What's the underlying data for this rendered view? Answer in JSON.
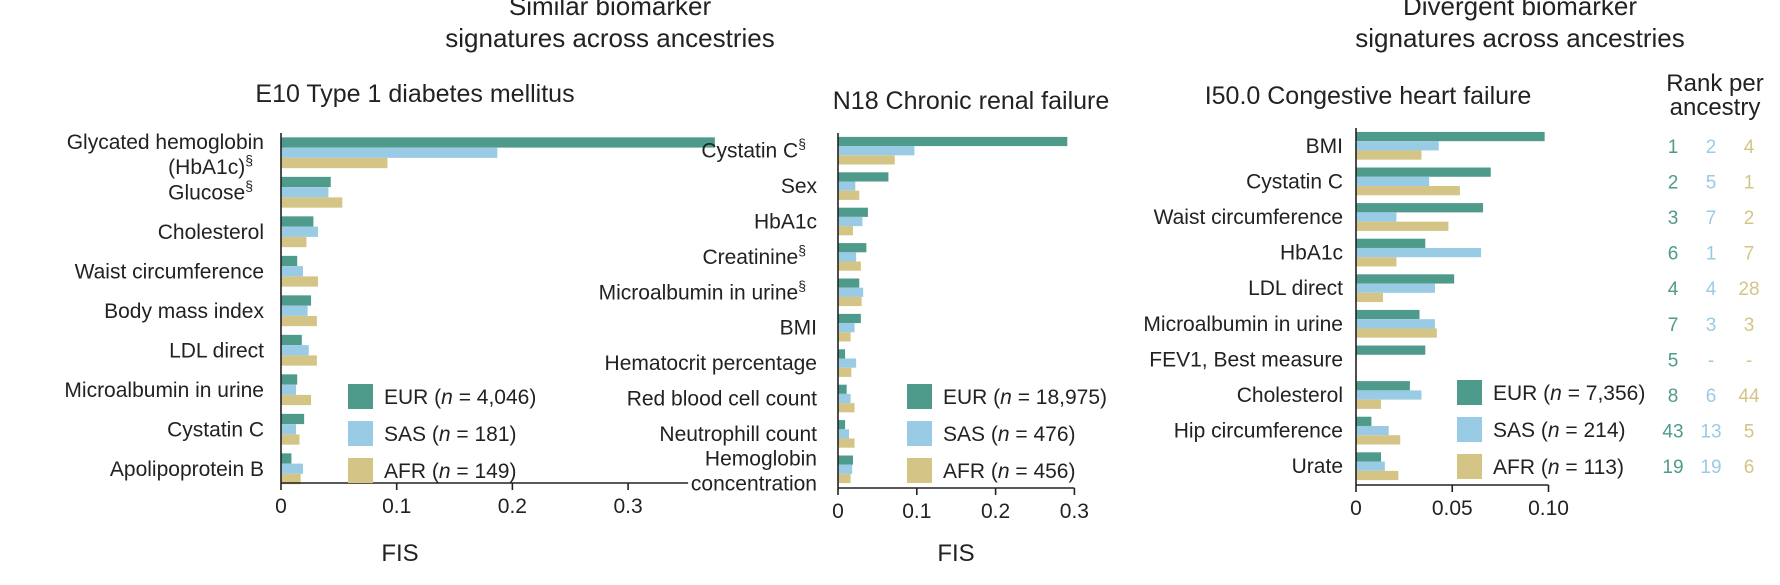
{
  "headers": {
    "similar": [
      "Similar biomarker",
      "signatures across ancestries"
    ],
    "divergent": [
      "Divergent biomarker",
      "signatures across ancestries"
    ]
  },
  "colors": {
    "EUR": "#4e9b8b",
    "SAS": "#99cbe4",
    "AFR": "#d4c587",
    "axis": "#222222"
  },
  "chart_data": [
    {
      "type": "bar",
      "orientation": "horizontal",
      "title": "E10 Type 1 diabetes mellitus",
      "xlabel": "FIS",
      "xlim": [
        0,
        0.4
      ],
      "xticks": [
        0,
        0.1,
        0.2,
        0.3
      ],
      "xtick_labels": [
        "0",
        "0.1",
        "0.2",
        "0.3"
      ],
      "grid": false,
      "legend_placement": "bottom-right",
      "categories": [
        {
          "label": "Glycated hemoglobin",
          "line2": "(HbA1c)",
          "marker": "§"
        },
        {
          "label": "Glucose",
          "marker": "§"
        },
        {
          "label": "Cholesterol"
        },
        {
          "label": "Waist circumference"
        },
        {
          "label": "Body mass index"
        },
        {
          "label": "LDL direct"
        },
        {
          "label": "Microalbumin in urine"
        },
        {
          "label": "Cystatin C"
        },
        {
          "label": "Apolipoprotein B"
        }
      ],
      "series": [
        {
          "name": "EUR",
          "n": "4,046",
          "values": [
            0.375,
            0.043,
            0.028,
            0.014,
            0.026,
            0.018,
            0.014,
            0.02,
            0.009
          ]
        },
        {
          "name": "SAS",
          "n": "181",
          "values": [
            0.187,
            0.041,
            0.032,
            0.019,
            0.023,
            0.024,
            0.013,
            0.013,
            0.019
          ]
        },
        {
          "name": "AFR",
          "n": "149",
          "values": [
            0.092,
            0.053,
            0.022,
            0.032,
            0.031,
            0.031,
            0.026,
            0.016,
            0.017
          ]
        }
      ]
    },
    {
      "type": "bar",
      "orientation": "horizontal",
      "title": "N18 Chronic renal failure",
      "xlabel": "FIS",
      "xlim": [
        0,
        0.3
      ],
      "xticks": [
        0,
        0.1,
        0.2,
        0.3
      ],
      "xtick_labels": [
        "0",
        "0.1",
        "0.2",
        "0.3"
      ],
      "grid": false,
      "legend_placement": "bottom-right",
      "categories": [
        {
          "label": "Cystatin C",
          "marker": "§"
        },
        {
          "label": "Sex"
        },
        {
          "label": "HbA1c"
        },
        {
          "label": "Creatinine",
          "marker": "§"
        },
        {
          "label": "Microalbumin in urine",
          "marker": "§"
        },
        {
          "label": "BMI"
        },
        {
          "label": "Hematocrit percentage"
        },
        {
          "label": "Red blood cell count"
        },
        {
          "label": "Neutrophill count"
        },
        {
          "label": "Hemoglobin",
          "line2": "concentration"
        }
      ],
      "series": [
        {
          "name": "EUR",
          "n": "18,975",
          "values": [
            0.291,
            0.064,
            0.038,
            0.036,
            0.027,
            0.029,
            0.009,
            0.011,
            0.009,
            0.019
          ]
        },
        {
          "name": "SAS",
          "n": "476",
          "values": [
            0.097,
            0.022,
            0.031,
            0.023,
            0.032,
            0.021,
            0.023,
            0.016,
            0.014,
            0.018
          ]
        },
        {
          "name": "AFR",
          "n": "456",
          "values": [
            0.072,
            0.027,
            0.019,
            0.029,
            0.03,
            0.016,
            0.017,
            0.021,
            0.021,
            0.016
          ]
        }
      ]
    },
    {
      "type": "bar",
      "orientation": "horizontal",
      "title": "I50.0 Congestive heart failure",
      "xlabel": "",
      "xlim": [
        0,
        0.1
      ],
      "xticks": [
        0,
        0.05,
        0.1
      ],
      "xtick_labels": [
        "0",
        "0.05",
        "0.10"
      ],
      "grid": false,
      "legend_placement": "bottom-right",
      "categories": [
        {
          "label": "BMI"
        },
        {
          "label": "Cystatin C"
        },
        {
          "label": "Waist circumference"
        },
        {
          "label": "HbA1c"
        },
        {
          "label": "LDL direct"
        },
        {
          "label": "Microalbumin in urine"
        },
        {
          "label": "FEV1, Best measure"
        },
        {
          "label": "Cholesterol"
        },
        {
          "label": "Hip circumference"
        },
        {
          "label": "Urate"
        }
      ],
      "series": [
        {
          "name": "EUR",
          "n": "7,356",
          "values": [
            0.098,
            0.07,
            0.066,
            0.036,
            0.051,
            0.033,
            0.036,
            0.028,
            0.008,
            0.013
          ]
        },
        {
          "name": "SAS",
          "n": "214",
          "values": [
            0.043,
            0.038,
            0.021,
            0.065,
            0.041,
            0.041,
            0.0,
            0.034,
            0.017,
            0.015
          ]
        },
        {
          "name": "AFR",
          "n": "113",
          "values": [
            0.034,
            0.054,
            0.048,
            0.021,
            0.014,
            0.042,
            0.0,
            0.013,
            0.023,
            0.022
          ]
        }
      ],
      "rank_table": {
        "title": [
          "Rank per",
          "ancestry"
        ],
        "rows": [
          [
            "1",
            "2",
            "4"
          ],
          [
            "2",
            "5",
            "1"
          ],
          [
            "3",
            "7",
            "2"
          ],
          [
            "6",
            "1",
            "7"
          ],
          [
            "4",
            "4",
            "28"
          ],
          [
            "7",
            "3",
            "3"
          ],
          [
            "5",
            "-",
            "-"
          ],
          [
            "8",
            "6",
            "44"
          ],
          [
            "43",
            "13",
            "5"
          ],
          [
            "19",
            "19",
            "6"
          ]
        ]
      }
    }
  ]
}
